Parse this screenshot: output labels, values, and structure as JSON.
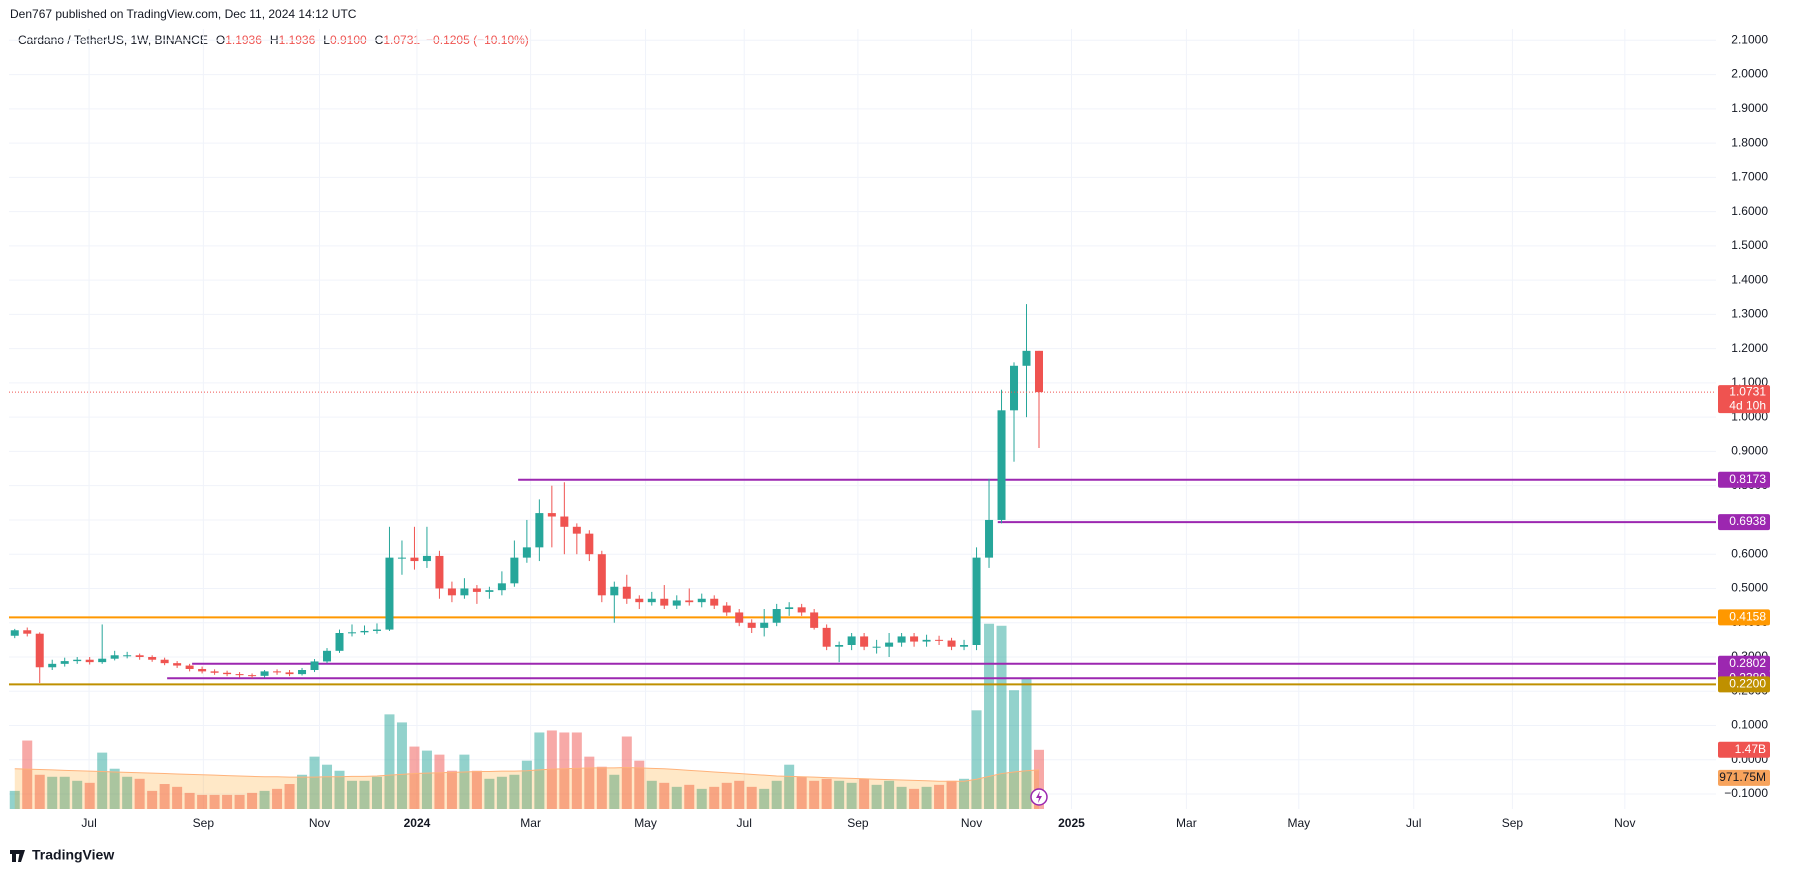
{
  "header": {
    "published": "Den767 published on TradingView.com, Dec 11, 2024 14:12 UTC",
    "brand": "TradingView"
  },
  "chart_data": {
    "type": "candlestick",
    "title": "Cardano / TetherUS, 1W, BINANCE",
    "ohlc_labels": [
      "O",
      "H",
      "L",
      "C"
    ],
    "last_labels": [
      "1.1936",
      "1.1936",
      "0.9100",
      "1.0731"
    ],
    "change_label": "−0.1205 (−10.10%)",
    "open": [
      0.362,
      0.378,
      0.368,
      0.27,
      0.28,
      0.288,
      0.292,
      0.285,
      0.295,
      0.305,
      0.305,
      0.3,
      0.292,
      0.282,
      0.275,
      0.265,
      0.258,
      0.254,
      0.25,
      0.247,
      0.245,
      0.258,
      0.255,
      0.25,
      0.262,
      0.287,
      0.318,
      0.37,
      0.372,
      0.376,
      0.38,
      0.59,
      0.59,
      0.58,
      0.595,
      0.5,
      0.48,
      0.5,
      0.49,
      0.495,
      0.515,
      0.59,
      0.62,
      0.72,
      0.71,
      0.68,
      0.66,
      0.6,
      0.48,
      0.505,
      0.47,
      0.46,
      0.47,
      0.45,
      0.465,
      0.46,
      0.47,
      0.45,
      0.43,
      0.4,
      0.385,
      0.4,
      0.44,
      0.445,
      0.43,
      0.385,
      0.33,
      0.335,
      0.36,
      0.33,
      0.33,
      0.342,
      0.36,
      0.345,
      0.35,
      0.348,
      0.33,
      0.335,
      0.59,
      0.7,
      1.02,
      1.15,
      1.1936
    ],
    "high": [
      0.382,
      0.386,
      0.372,
      0.292,
      0.298,
      0.3,
      0.3,
      0.395,
      0.318,
      0.315,
      0.31,
      0.305,
      0.298,
      0.288,
      0.28,
      0.272,
      0.264,
      0.26,
      0.256,
      0.252,
      0.262,
      0.264,
      0.262,
      0.268,
      0.294,
      0.326,
      0.38,
      0.395,
      0.392,
      0.398,
      0.68,
      0.64,
      0.68,
      0.68,
      0.61,
      0.52,
      0.53,
      0.51,
      0.505,
      0.55,
      0.64,
      0.7,
      0.76,
      0.8,
      0.81,
      0.69,
      0.67,
      0.61,
      0.52,
      0.54,
      0.48,
      0.49,
      0.51,
      0.48,
      0.5,
      0.485,
      0.48,
      0.46,
      0.44,
      0.41,
      0.44,
      0.455,
      0.46,
      0.455,
      0.44,
      0.395,
      0.345,
      0.37,
      0.37,
      0.35,
      0.37,
      0.37,
      0.37,
      0.365,
      0.362,
      0.356,
      0.35,
      0.62,
      0.82,
      1.08,
      1.16,
      1.33,
      1.1936
    ],
    "low": [
      0.355,
      0.36,
      0.224,
      0.262,
      0.272,
      0.28,
      0.278,
      0.28,
      0.29,
      0.296,
      0.292,
      0.286,
      0.276,
      0.268,
      0.258,
      0.252,
      0.248,
      0.244,
      0.24,
      0.238,
      0.24,
      0.248,
      0.244,
      0.246,
      0.256,
      0.282,
      0.312,
      0.36,
      0.365,
      0.368,
      0.376,
      0.54,
      0.555,
      0.56,
      0.47,
      0.46,
      0.47,
      0.455,
      0.47,
      0.48,
      0.505,
      0.575,
      0.58,
      0.62,
      0.6,
      0.6,
      0.58,
      0.46,
      0.4,
      0.455,
      0.44,
      0.45,
      0.44,
      0.44,
      0.45,
      0.445,
      0.44,
      0.42,
      0.39,
      0.37,
      0.36,
      0.39,
      0.42,
      0.42,
      0.38,
      0.32,
      0.285,
      0.32,
      0.32,
      0.31,
      0.3,
      0.33,
      0.33,
      0.33,
      0.335,
      0.32,
      0.32,
      0.32,
      0.56,
      0.69,
      0.87,
      1.0,
      0.91
    ],
    "close": [
      0.378,
      0.368,
      0.27,
      0.28,
      0.288,
      0.292,
      0.285,
      0.295,
      0.305,
      0.305,
      0.3,
      0.292,
      0.282,
      0.275,
      0.265,
      0.258,
      0.254,
      0.25,
      0.247,
      0.245,
      0.258,
      0.255,
      0.25,
      0.262,
      0.287,
      0.318,
      0.37,
      0.372,
      0.376,
      0.38,
      0.59,
      0.59,
      0.58,
      0.595,
      0.5,
      0.48,
      0.5,
      0.49,
      0.495,
      0.515,
      0.59,
      0.62,
      0.72,
      0.71,
      0.68,
      0.66,
      0.6,
      0.48,
      0.505,
      0.47,
      0.46,
      0.47,
      0.45,
      0.465,
      0.46,
      0.47,
      0.45,
      0.43,
      0.4,
      0.385,
      0.4,
      0.44,
      0.445,
      0.43,
      0.385,
      0.33,
      0.335,
      0.36,
      0.33,
      0.33,
      0.342,
      0.36,
      0.345,
      0.35,
      0.348,
      0.33,
      0.335,
      0.59,
      0.7,
      1.02,
      1.15,
      1.1936,
      1.0731
    ],
    "up_color": "#26a69a",
    "down_color": "#ef5350",
    "volume": [
      0.45,
      1.7,
      0.85,
      0.8,
      0.8,
      0.7,
      0.65,
      1.4,
      1.0,
      0.8,
      0.75,
      0.45,
      0.62,
      0.55,
      0.4,
      0.35,
      0.35,
      0.35,
      0.35,
      0.4,
      0.45,
      0.5,
      0.62,
      0.85,
      1.3,
      1.1,
      0.95,
      0.7,
      0.7,
      0.8,
      2.35,
      2.15,
      1.55,
      1.45,
      1.35,
      0.95,
      1.35,
      0.95,
      0.75,
      0.8,
      0.85,
      1.2,
      1.9,
      1.95,
      1.9,
      1.9,
      1.3,
      1.05,
      0.85,
      1.8,
      1.2,
      0.7,
      0.65,
      0.55,
      0.6,
      0.5,
      0.55,
      0.65,
      0.7,
      0.55,
      0.5,
      0.7,
      1.1,
      0.8,
      0.7,
      0.75,
      0.7,
      0.65,
      0.75,
      0.6,
      0.7,
      0.55,
      0.5,
      0.55,
      0.6,
      0.7,
      0.75,
      2.45,
      4.6,
      4.55,
      2.95,
      3.25,
      1.47
    ],
    "volume_label": "1.47B",
    "volume_ma": [
      1.0,
      0.99,
      0.98,
      0.97,
      0.96,
      0.95,
      0.94,
      0.93,
      0.92,
      0.91,
      0.9,
      0.89,
      0.88,
      0.87,
      0.86,
      0.85,
      0.84,
      0.83,
      0.82,
      0.81,
      0.8,
      0.8,
      0.79,
      0.79,
      0.79,
      0.8,
      0.8,
      0.81,
      0.81,
      0.82,
      0.84,
      0.86,
      0.88,
      0.89,
      0.9,
      0.91,
      0.92,
      0.93,
      0.93,
      0.94,
      0.94,
      0.95,
      0.97,
      0.99,
      1.0,
      1.01,
      1.02,
      1.02,
      1.02,
      1.03,
      1.02,
      1.01,
      1.0,
      0.98,
      0.96,
      0.94,
      0.92,
      0.9,
      0.88,
      0.86,
      0.84,
      0.82,
      0.81,
      0.8,
      0.79,
      0.78,
      0.77,
      0.76,
      0.75,
      0.74,
      0.73,
      0.72,
      0.71,
      0.7,
      0.69,
      0.69,
      0.69,
      0.74,
      0.81,
      0.88,
      0.92,
      0.95,
      0.97175
    ],
    "volume_ma_label": "971.75M",
    "countdown": "4d 10h",
    "levels": [
      {
        "value": 0.8173,
        "label": "0.8173",
        "from": 40.3,
        "color": "#9c27b0"
      },
      {
        "value": 0.6938,
        "label": "0.6938",
        "from": 78.7,
        "color": "#9c27b0"
      },
      {
        "value": 0.4158,
        "label": "0.4158",
        "from": -0.46,
        "color": "#ff9800"
      },
      {
        "value": 0.2802,
        "label": "0.2802",
        "from": 14.2,
        "color": "#9c27b0"
      },
      {
        "value": 0.238,
        "label": "0.2380",
        "from": 12.2,
        "color": "#9c27b0"
      },
      {
        "value": 0.22,
        "label": "0.2200",
        "from": -0.46,
        "color": "#bf9000"
      }
    ],
    "xlim": [
      -0.46,
      136.2
    ],
    "xticks": [
      {
        "value": 5.95,
        "label": "Jul"
      },
      {
        "value": 15.1,
        "label": "Sep"
      },
      {
        "value": 24.4,
        "label": "Nov"
      },
      {
        "value": 32.2,
        "label": "2024",
        "bold": true
      },
      {
        "value": 41.3,
        "label": "Mar"
      },
      {
        "value": 50.5,
        "label": "May"
      },
      {
        "value": 58.4,
        "label": "Jul"
      },
      {
        "value": 67.5,
        "label": "Sep"
      },
      {
        "value": 76.6,
        "label": "Nov"
      },
      {
        "value": 84.6,
        "label": "2025",
        "bold": true
      },
      {
        "value": 93.8,
        "label": "Mar"
      },
      {
        "value": 102.8,
        "label": "May"
      },
      {
        "value": 112.0,
        "label": "Jul"
      },
      {
        "value": 119.9,
        "label": "Sep"
      },
      {
        "value": 128.9,
        "label": "Nov"
      }
    ],
    "ylim": [
      -0.1437,
      2.133
    ],
    "yticks": [
      {
        "value": 2.1,
        "label": "2.1000"
      },
      {
        "value": 2.0,
        "label": "2.0000"
      },
      {
        "value": 1.9,
        "label": "1.9000"
      },
      {
        "value": 1.8,
        "label": "1.8000"
      },
      {
        "value": 1.7,
        "label": "1.7000"
      },
      {
        "value": 1.6,
        "label": "1.6000"
      },
      {
        "value": 1.5,
        "label": "1.5000"
      },
      {
        "value": 1.4,
        "label": "1.4000"
      },
      {
        "value": 1.3,
        "label": "1.3000"
      },
      {
        "value": 1.2,
        "label": "1.2000"
      },
      {
        "value": 1.1,
        "label": "1.1000"
      },
      {
        "value": 1.0,
        "label": "1.0000"
      },
      {
        "value": 0.9,
        "label": "0.9000"
      },
      {
        "value": 0.8,
        "label": "0.8000"
      },
      {
        "value": 0.7,
        "label": "0.7000"
      },
      {
        "value": 0.6,
        "label": "0.6000"
      },
      {
        "value": 0.5,
        "label": "0.5000"
      },
      {
        "value": 0.4,
        "label": "0.4000"
      },
      {
        "value": 0.3,
        "label": "0.3000"
      },
      {
        "value": 0.2,
        "label": "0.2000"
      },
      {
        "value": 0.1,
        "label": "0.1000"
      },
      {
        "value": 0.0,
        "label": "0.0000"
      },
      {
        "value": -0.1,
        "label": "−0.1000"
      }
    ],
    "grid": true
  }
}
